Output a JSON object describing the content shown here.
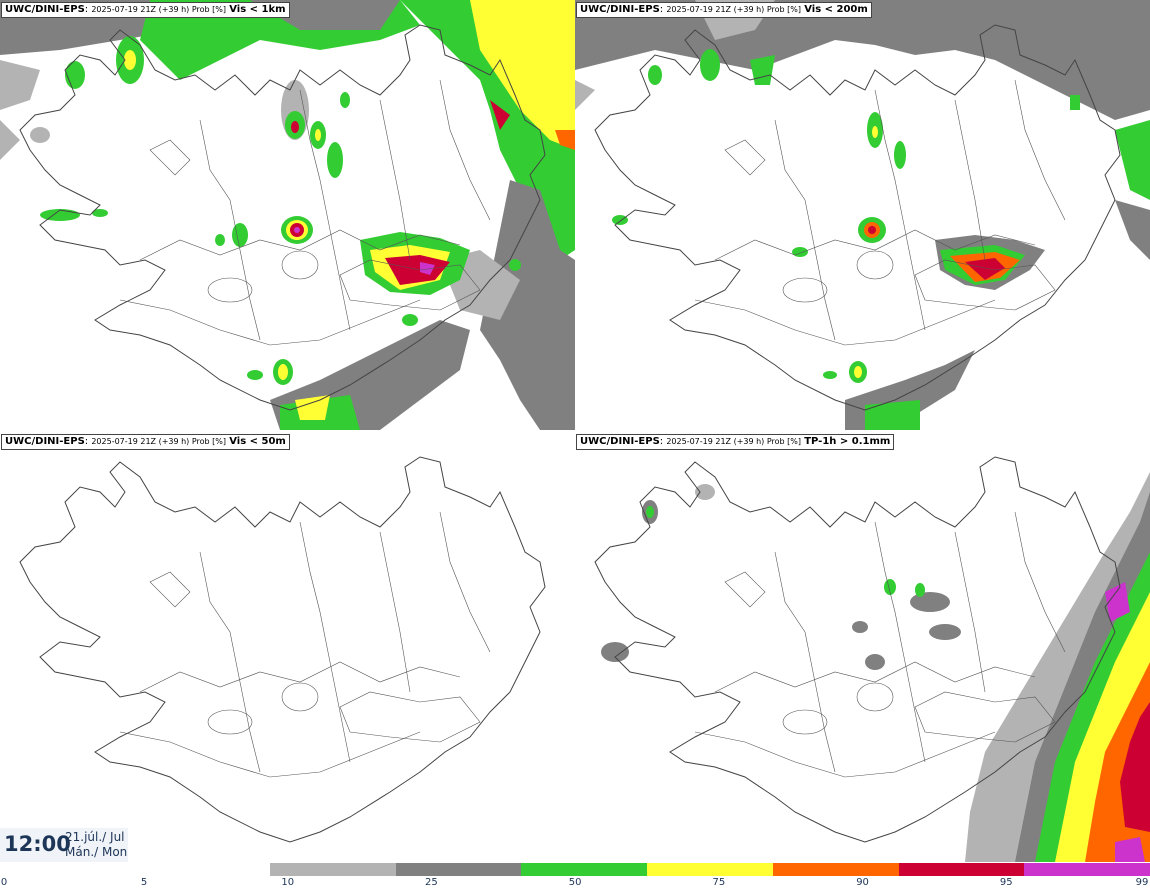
{
  "panels": [
    {
      "source": "UWC/DINI-EPS",
      "run": "2025-07-19 21Z (+39 h) Prob [%]",
      "variable": "Vis < 1km"
    },
    {
      "source": "UWC/DINI-EPS",
      "run": "2025-07-19 21Z (+39 h) Prob [%]",
      "variable": "Vis < 200m"
    },
    {
      "source": "UWC/DINI-EPS",
      "run": "2025-07-19 21Z (+39 h) Prob [%]",
      "variable": "Vis < 50m"
    },
    {
      "source": "UWC/DINI-EPS",
      "run": "2025-07-19 21Z (+39 h) Prob [%]",
      "variable": "TP-1h > 0.1mm"
    }
  ],
  "valid_time": {
    "time": "12:00",
    "date_line1": "21.júl./ Jul",
    "date_line2": "Mán./ Mon"
  },
  "colorbar": {
    "levels": [
      "0",
      "5",
      "10",
      "25",
      "50",
      "75",
      "90",
      "95",
      "99"
    ],
    "colors": [
      "#ffffff",
      "#b3b3b3",
      "#808080",
      "#33cc33",
      "#ffff33",
      "#ff6600",
      "#cc0033",
      "#cc33cc"
    ]
  },
  "colors": {
    "p5": "#b3b3b3",
    "p10": "#808080",
    "p25": "#33cc33",
    "p50": "#ffff33",
    "p75": "#ff6600",
    "p90": "#cc0033",
    "p95": "#cc33cc",
    "p99": "#ffccff"
  }
}
